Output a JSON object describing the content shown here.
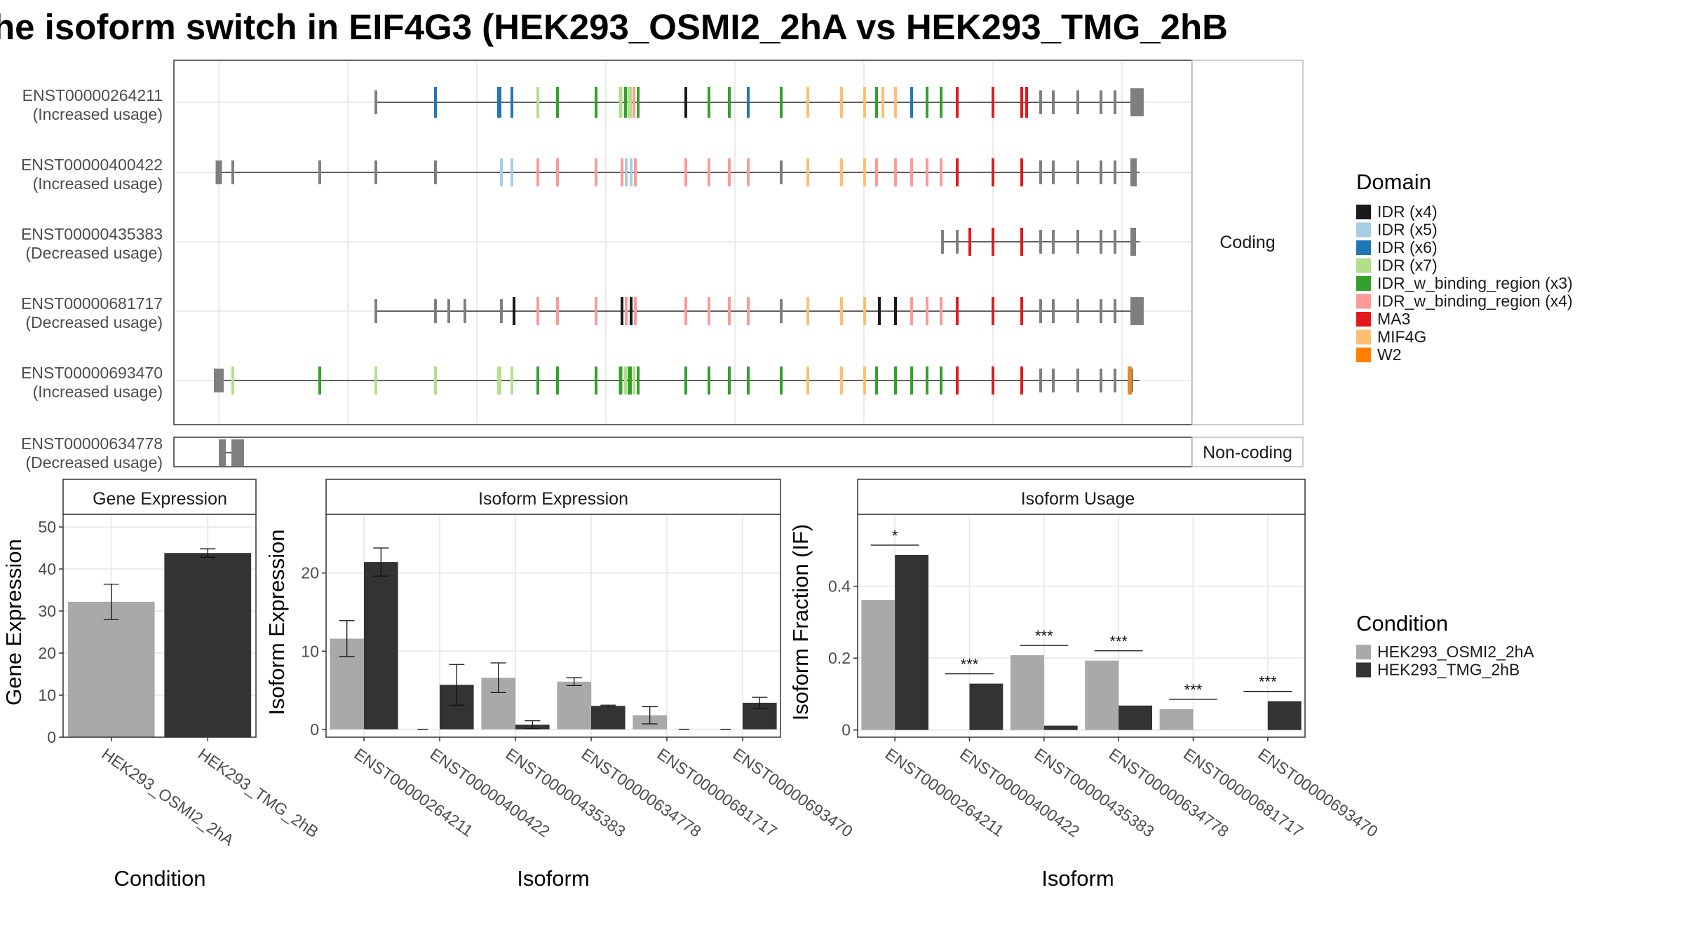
{
  "title": "he isoform switch in EIF4G3 (HEK293_OSMI2_2hA vs HEK293_TMG_2hB",
  "structure": {
    "coding_label": "Coding",
    "noncoding_label": "Non-coding",
    "coding_isoforms": [
      {
        "id": "ENST00000264211",
        "usage": "(Increased usage)"
      },
      {
        "id": "ENST00000400422",
        "usage": "(Increased usage)"
      },
      {
        "id": "ENST00000435383",
        "usage": "(Decreased usage)"
      },
      {
        "id": "ENST00000681717",
        "usage": "(Decreased usage)"
      },
      {
        "id": "ENST00000693470",
        "usage": "(Increased usage)"
      }
    ],
    "noncoding_isoforms": [
      {
        "id": "ENST00000634778",
        "usage": "(Decreased usage)"
      }
    ]
  },
  "legend_domain": {
    "title": "Domain",
    "items": [
      {
        "label": "IDR (x4)",
        "color": "#1a1a1a"
      },
      {
        "label": "IDR (x5)",
        "color": "#a6cee3"
      },
      {
        "label": "IDR (x6)",
        "color": "#1f78b4"
      },
      {
        "label": "IDR (x7)",
        "color": "#b2df8a"
      },
      {
        "label": "IDR_w_binding_region (x3)",
        "color": "#33a02c"
      },
      {
        "label": "IDR_w_binding_region (x4)",
        "color": "#fb9a99"
      },
      {
        "label": "MA3",
        "color": "#e31a1c"
      },
      {
        "label": "MIF4G",
        "color": "#fdbf6f"
      },
      {
        "label": "W2",
        "color": "#ff7f00"
      }
    ]
  },
  "legend_condition": {
    "title": "Condition",
    "items": [
      {
        "label": "HEK293_OSMI2_2hA",
        "color": "#a9a9a9"
      },
      {
        "label": "HEK293_TMG_2hB",
        "color": "#333333"
      }
    ]
  },
  "chart_data": [
    {
      "type": "bar",
      "title": "Gene Expression",
      "xlabel": "Condition",
      "ylabel": "Gene Expression",
      "categories": [
        "HEK293_OSMI2_2hA",
        "HEK293_TMG_2hB"
      ],
      "values": [
        32.2,
        43.8
      ],
      "error": [
        4.2,
        1.0
      ],
      "ylim": [
        0,
        53
      ],
      "yticks": [
        0,
        10,
        20,
        30,
        40,
        50
      ]
    },
    {
      "type": "bar",
      "title": "Isoform Expression",
      "xlabel": "Isoform",
      "ylabel": "Isoform Expression",
      "categories": [
        "ENST00000264211",
        "ENST00000400422",
        "ENST00000435383",
        "ENST00000634778",
        "ENST00000681717",
        "ENST00000693470"
      ],
      "series": [
        {
          "name": "HEK293_OSMI2_2hA",
          "values": [
            11.6,
            0.0,
            6.6,
            6.1,
            1.8,
            0.0
          ],
          "error": [
            2.3,
            0,
            1.9,
            0.5,
            1.1,
            0
          ]
        },
        {
          "name": "HEK293_TMG_2hB",
          "values": [
            21.4,
            5.7,
            0.6,
            3.0,
            0.0,
            3.4
          ],
          "error": [
            1.8,
            2.6,
            0.5,
            0.1,
            0,
            0.7
          ]
        }
      ],
      "ylim": [
        -1,
        27.5
      ],
      "yticks": [
        0,
        10,
        20
      ]
    },
    {
      "type": "bar",
      "title": "Isoform Usage",
      "xlabel": "Isoform",
      "ylabel": "Isoform Fraction (IF)",
      "categories": [
        "ENST00000264211",
        "ENST00000400422",
        "ENST00000435383",
        "ENST00000634778",
        "ENST00000681717",
        "ENST00000693470"
      ],
      "series": [
        {
          "name": "HEK293_OSMI2_2hA",
          "values": [
            0.362,
            0.0,
            0.208,
            0.193,
            0.058,
            0.0
          ]
        },
        {
          "name": "HEK293_TMG_2hB",
          "values": [
            0.487,
            0.129,
            0.012,
            0.068,
            0.0,
            0.08
          ]
        }
      ],
      "significance": [
        "*",
        "***",
        "***",
        "***",
        "***",
        "***"
      ],
      "ylim": [
        -0.02,
        0.6
      ],
      "yticks": [
        0.0,
        0.2,
        0.4
      ]
    }
  ]
}
